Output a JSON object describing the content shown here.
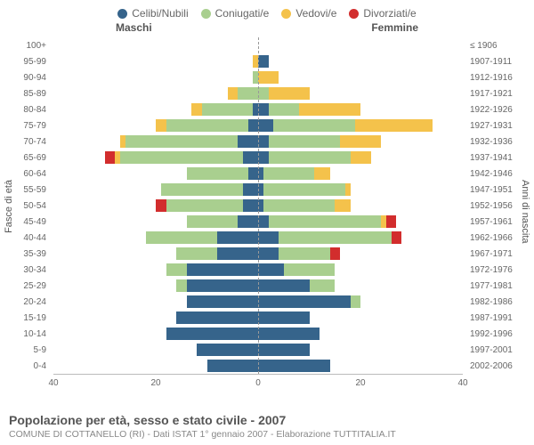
{
  "colors": {
    "celibi": "#36648b",
    "coniugati": "#a9cf8f",
    "vedovi": "#f4c24b",
    "divorziati": "#d22d2d",
    "bg": "#ffffff",
    "grid": "#e0e0e0",
    "text": "#666666"
  },
  "legend": [
    {
      "label": "Celibi/Nubili",
      "color": "#36648b"
    },
    {
      "label": "Coniugati/e",
      "color": "#a9cf8f"
    },
    {
      "label": "Vedovi/e",
      "color": "#f4c24b"
    },
    {
      "label": "Divorziati/e",
      "color": "#d22d2d"
    }
  ],
  "headers": {
    "male": "Maschi",
    "female": "Femmine"
  },
  "y_title_left": "Fasce di età",
  "y_title_right": "Anni di nascita",
  "title": "Popolazione per età, sesso e stato civile - 2007",
  "subtitle": "COMUNE DI COTTANELLO (RI) - Dati ISTAT 1° gennaio 2007 - Elaborazione TUTTITALIA.IT",
  "x_max": 40,
  "x_ticks_left": [
    40,
    20,
    0
  ],
  "x_ticks_right": [
    0,
    20,
    40
  ],
  "rows": [
    {
      "age": "100+",
      "birth": "≤ 1906",
      "m": {
        "c": 0,
        "co": 0,
        "v": 0,
        "d": 0
      },
      "f": {
        "c": 0,
        "co": 0,
        "v": 0,
        "d": 0
      }
    },
    {
      "age": "95-99",
      "birth": "1907-1911",
      "m": {
        "c": 0,
        "co": 0,
        "v": 1,
        "d": 0
      },
      "f": {
        "c": 2,
        "co": 0,
        "v": 0,
        "d": 0
      }
    },
    {
      "age": "90-94",
      "birth": "1912-1916",
      "m": {
        "c": 0,
        "co": 1,
        "v": 0,
        "d": 0
      },
      "f": {
        "c": 0,
        "co": 0,
        "v": 4,
        "d": 0
      }
    },
    {
      "age": "85-89",
      "birth": "1917-1921",
      "m": {
        "c": 0,
        "co": 4,
        "v": 2,
        "d": 0
      },
      "f": {
        "c": 0,
        "co": 2,
        "v": 8,
        "d": 0
      }
    },
    {
      "age": "80-84",
      "birth": "1922-1926",
      "m": {
        "c": 1,
        "co": 10,
        "v": 2,
        "d": 0
      },
      "f": {
        "c": 2,
        "co": 6,
        "v": 12,
        "d": 0
      }
    },
    {
      "age": "75-79",
      "birth": "1927-1931",
      "m": {
        "c": 2,
        "co": 16,
        "v": 2,
        "d": 0
      },
      "f": {
        "c": 3,
        "co": 16,
        "v": 15,
        "d": 0
      }
    },
    {
      "age": "70-74",
      "birth": "1932-1936",
      "m": {
        "c": 4,
        "co": 22,
        "v": 1,
        "d": 0
      },
      "f": {
        "c": 2,
        "co": 14,
        "v": 8,
        "d": 0
      }
    },
    {
      "age": "65-69",
      "birth": "1937-1941",
      "m": {
        "c": 3,
        "co": 24,
        "v": 1,
        "d": 2
      },
      "f": {
        "c": 2,
        "co": 16,
        "v": 4,
        "d": 0
      }
    },
    {
      "age": "60-64",
      "birth": "1942-1946",
      "m": {
        "c": 2,
        "co": 12,
        "v": 0,
        "d": 0
      },
      "f": {
        "c": 1,
        "co": 10,
        "v": 3,
        "d": 0
      }
    },
    {
      "age": "55-59",
      "birth": "1947-1951",
      "m": {
        "c": 3,
        "co": 16,
        "v": 0,
        "d": 0
      },
      "f": {
        "c": 1,
        "co": 16,
        "v": 1,
        "d": 0
      }
    },
    {
      "age": "50-54",
      "birth": "1952-1956",
      "m": {
        "c": 3,
        "co": 15,
        "v": 0,
        "d": 2
      },
      "f": {
        "c": 1,
        "co": 14,
        "v": 3,
        "d": 0
      }
    },
    {
      "age": "45-49",
      "birth": "1957-1961",
      "m": {
        "c": 4,
        "co": 10,
        "v": 0,
        "d": 0
      },
      "f": {
        "c": 2,
        "co": 22,
        "v": 1,
        "d": 2
      }
    },
    {
      "age": "40-44",
      "birth": "1962-1966",
      "m": {
        "c": 8,
        "co": 14,
        "v": 0,
        "d": 0
      },
      "f": {
        "c": 4,
        "co": 22,
        "v": 0,
        "d": 2
      }
    },
    {
      "age": "35-39",
      "birth": "1967-1971",
      "m": {
        "c": 8,
        "co": 8,
        "v": 0,
        "d": 0
      },
      "f": {
        "c": 4,
        "co": 10,
        "v": 0,
        "d": 2
      }
    },
    {
      "age": "30-34",
      "birth": "1972-1976",
      "m": {
        "c": 14,
        "co": 4,
        "v": 0,
        "d": 0
      },
      "f": {
        "c": 5,
        "co": 10,
        "v": 0,
        "d": 0
      }
    },
    {
      "age": "25-29",
      "birth": "1977-1981",
      "m": {
        "c": 14,
        "co": 2,
        "v": 0,
        "d": 0
      },
      "f": {
        "c": 10,
        "co": 5,
        "v": 0,
        "d": 0
      }
    },
    {
      "age": "20-24",
      "birth": "1982-1986",
      "m": {
        "c": 14,
        "co": 0,
        "v": 0,
        "d": 0
      },
      "f": {
        "c": 18,
        "co": 2,
        "v": 0,
        "d": 0
      }
    },
    {
      "age": "15-19",
      "birth": "1987-1991",
      "m": {
        "c": 16,
        "co": 0,
        "v": 0,
        "d": 0
      },
      "f": {
        "c": 10,
        "co": 0,
        "v": 0,
        "d": 0
      }
    },
    {
      "age": "10-14",
      "birth": "1992-1996",
      "m": {
        "c": 18,
        "co": 0,
        "v": 0,
        "d": 0
      },
      "f": {
        "c": 12,
        "co": 0,
        "v": 0,
        "d": 0
      }
    },
    {
      "age": "5-9",
      "birth": "1997-2001",
      "m": {
        "c": 12,
        "co": 0,
        "v": 0,
        "d": 0
      },
      "f": {
        "c": 10,
        "co": 0,
        "v": 0,
        "d": 0
      }
    },
    {
      "age": "0-4",
      "birth": "2002-2006",
      "m": {
        "c": 10,
        "co": 0,
        "v": 0,
        "d": 0
      },
      "f": {
        "c": 14,
        "co": 0,
        "v": 0,
        "d": 0
      }
    }
  ]
}
